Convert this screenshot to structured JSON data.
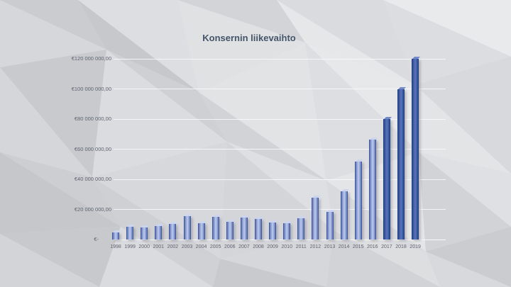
{
  "slide": {
    "title": "Konsernin liikevaihto"
  },
  "chart_data": {
    "type": "bar",
    "title": "Konsernin liikevaihto",
    "categories": [
      "1998",
      "1999",
      "2000",
      "2001",
      "2002",
      "2003",
      "2004",
      "2005",
      "2006",
      "2007",
      "2008",
      "2009",
      "2010",
      "2011",
      "2012",
      "2013",
      "2014",
      "2015",
      "2016",
      "2017",
      "2018",
      "2019"
    ],
    "values": [
      4500000,
      8500000,
      8000000,
      9000000,
      10500000,
      15500000,
      11000000,
      15000000,
      12000000,
      14500000,
      13500000,
      11500000,
      11000000,
      14000000,
      28000000,
      18500000,
      32000000,
      52000000,
      66500000,
      80000000,
      100000000,
      120000000
    ],
    "emphasized_categories": [
      "2017",
      "2018",
      "2019"
    ],
    "y_ticks": [
      {
        "label": "€-",
        "value": 0
      },
      {
        "label": "€20 000 000,00",
        "value": 20000000
      },
      {
        "label": "€40 000 000,00",
        "value": 40000000
      },
      {
        "label": "€60 000 000,00",
        "value": 60000000
      },
      {
        "label": "€80 000 000,00",
        "value": 80000000
      },
      {
        "label": "€100 000 000,00",
        "value": 100000000
      },
      {
        "label": "€120 000 000,00",
        "value": 120000000
      }
    ],
    "ylim": [
      0,
      120000000
    ],
    "grid": true,
    "legend_position": "none",
    "xlabel": "",
    "ylabel": ""
  },
  "colors": {
    "title_text": "#44546a",
    "axis_text": "#5b6370",
    "gridline": "#f7f8f9",
    "bar_light_edge": "#5d76ba",
    "bar_light_center": "#b7c3e7",
    "bar_light_border": "#46599c",
    "bar_light_cap": "#ccd5f0",
    "bar_dark_edge": "#2c4890",
    "bar_dark_center": "#5570b6",
    "bar_dark_border": "#24407f",
    "bar_dark_cap": "#7388c9"
  }
}
